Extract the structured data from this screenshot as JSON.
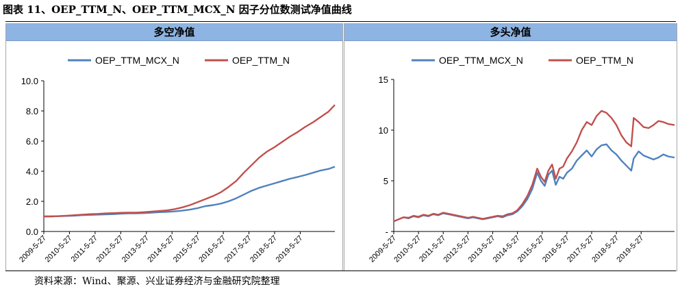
{
  "figure_title": "图表 11、OEP_TTM_N、OEP_TTM_MCX_N 因子分位数测试净值曲线",
  "source": "资料来源：Wind、聚源、兴业证券经济与金融研究院整理",
  "colors": {
    "header_bg": "#8eb4e3",
    "series_blue": "#4f81bd",
    "series_red": "#c0504d"
  },
  "chart_data": [
    {
      "type": "line",
      "title": "多空净值",
      "xlabel": "",
      "ylabel": "",
      "ylim": [
        0,
        10
      ],
      "y_ticks": [
        0,
        2,
        4,
        6,
        8,
        10
      ],
      "y_tick_labels": [
        "0.0",
        "2.0",
        "4.0",
        "6.0",
        "8.0",
        "10.0"
      ],
      "x_tick_labels": [
        "2009-5-27",
        "2010-5-27",
        "2011-5-27",
        "2012-5-27",
        "2013-5-27",
        "2014-5-27",
        "2015-5-27",
        "2016-5-27",
        "2017-5-27",
        "2018-5-27",
        "2019-5-27"
      ],
      "legend_position": "top",
      "grid": false,
      "x": [
        2009.4,
        2009.7,
        2010.0,
        2010.3,
        2010.6,
        2010.9,
        2011.2,
        2011.5,
        2011.8,
        2012.1,
        2012.4,
        2012.7,
        2013.0,
        2013.3,
        2013.6,
        2013.9,
        2014.2,
        2014.5,
        2014.8,
        2015.1,
        2015.4,
        2015.7,
        2016.0,
        2016.3,
        2016.6,
        2016.9,
        2017.2,
        2017.5,
        2017.8,
        2018.1,
        2018.4,
        2018.7,
        2019.0,
        2019.3,
        2019.6,
        2019.9,
        2020.2,
        2020.5,
        2020.75
      ],
      "series": [
        {
          "name": "OEP_TTM_MCX_N",
          "color": "#4f81bd",
          "values": [
            1.0,
            1.0,
            1.02,
            1.03,
            1.05,
            1.08,
            1.1,
            1.12,
            1.13,
            1.15,
            1.18,
            1.2,
            1.2,
            1.22,
            1.25,
            1.28,
            1.3,
            1.33,
            1.38,
            1.45,
            1.55,
            1.68,
            1.75,
            1.85,
            2.0,
            2.2,
            2.45,
            2.7,
            2.9,
            3.05,
            3.2,
            3.35,
            3.5,
            3.62,
            3.75,
            3.9,
            4.05,
            4.15,
            4.3
          ]
        },
        {
          "name": "OEP_TTM_N",
          "color": "#c0504d",
          "values": [
            1.0,
            1.0,
            1.02,
            1.05,
            1.08,
            1.12,
            1.15,
            1.17,
            1.2,
            1.22,
            1.24,
            1.25,
            1.25,
            1.28,
            1.32,
            1.36,
            1.4,
            1.48,
            1.6,
            1.75,
            1.95,
            2.15,
            2.35,
            2.6,
            2.95,
            3.35,
            3.9,
            4.4,
            4.9,
            5.3,
            5.6,
            5.95,
            6.3,
            6.6,
            6.95,
            7.25,
            7.6,
            7.95,
            8.4
          ]
        }
      ]
    },
    {
      "type": "line",
      "title": "多头净值",
      "xlabel": "",
      "ylabel": "",
      "ylim": [
        0,
        15
      ],
      "y_ticks": [
        0,
        5,
        10,
        15
      ],
      "y_tick_labels": [
        "-",
        "5",
        "10",
        "15"
      ],
      "x_tick_labels": [
        "2009-5-27",
        "2010-5-27",
        "2011-5-27",
        "2012-5-27",
        "2013-5-27",
        "2014-5-27",
        "2015-5-27",
        "2016-5-27",
        "2017-5-27",
        "2018-5-27",
        "2019-5-27"
      ],
      "legend_position": "top",
      "grid": false,
      "x": [
        2009.4,
        2009.6,
        2009.8,
        2010.0,
        2010.2,
        2010.4,
        2010.6,
        2010.8,
        2011.0,
        2011.2,
        2011.4,
        2011.6,
        2011.8,
        2012.0,
        2012.2,
        2012.4,
        2012.6,
        2012.8,
        2013.0,
        2013.2,
        2013.4,
        2013.6,
        2013.8,
        2014.0,
        2014.2,
        2014.4,
        2014.6,
        2014.8,
        2015.0,
        2015.2,
        2015.35,
        2015.5,
        2015.65,
        2015.8,
        2015.95,
        2016.1,
        2016.25,
        2016.4,
        2016.6,
        2016.8,
        2017.0,
        2017.2,
        2017.4,
        2017.6,
        2017.8,
        2018.0,
        2018.2,
        2018.4,
        2018.6,
        2018.8,
        2019.0,
        2019.1,
        2019.3,
        2019.5,
        2019.7,
        2019.9,
        2020.1,
        2020.3,
        2020.5,
        2020.75
      ],
      "series": [
        {
          "name": "OEP_TTM_MCX_N",
          "color": "#4f81bd",
          "values": [
            1.0,
            1.2,
            1.4,
            1.3,
            1.5,
            1.4,
            1.6,
            1.5,
            1.7,
            1.6,
            1.8,
            1.7,
            1.6,
            1.5,
            1.4,
            1.3,
            1.4,
            1.3,
            1.2,
            1.3,
            1.4,
            1.5,
            1.4,
            1.6,
            1.7,
            2.0,
            2.5,
            3.2,
            4.2,
            5.8,
            5.0,
            4.5,
            5.6,
            6.0,
            4.6,
            5.4,
            5.2,
            5.8,
            6.2,
            7.0,
            7.5,
            8.0,
            7.4,
            8.1,
            8.5,
            8.6,
            8.0,
            7.6,
            7.0,
            6.5,
            6.0,
            7.2,
            7.9,
            7.5,
            7.3,
            7.1,
            7.3,
            7.6,
            7.4,
            7.3
          ]
        },
        {
          "name": "OEP_TTM_N",
          "color": "#c0504d",
          "values": [
            1.0,
            1.2,
            1.4,
            1.35,
            1.55,
            1.45,
            1.65,
            1.55,
            1.75,
            1.65,
            1.85,
            1.75,
            1.65,
            1.55,
            1.45,
            1.35,
            1.45,
            1.35,
            1.25,
            1.35,
            1.45,
            1.55,
            1.5,
            1.7,
            1.8,
            2.1,
            2.7,
            3.5,
            4.6,
            6.2,
            5.4,
            4.9,
            6.0,
            6.6,
            5.2,
            6.2,
            6.4,
            7.2,
            7.9,
            8.8,
            10.0,
            10.8,
            10.5,
            11.4,
            11.9,
            11.7,
            11.2,
            10.5,
            9.5,
            8.8,
            8.4,
            11.2,
            10.8,
            10.3,
            10.2,
            10.5,
            10.9,
            10.8,
            10.6,
            10.5
          ]
        }
      ]
    }
  ]
}
